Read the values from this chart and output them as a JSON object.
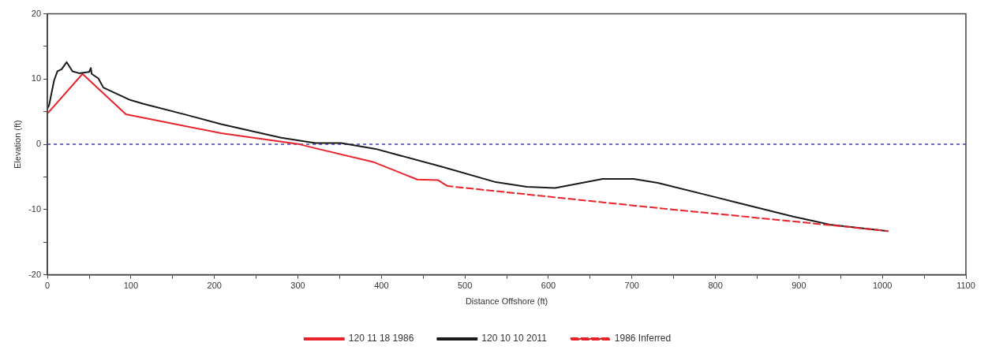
{
  "chart_data": {
    "type": "line",
    "xlabel": "Distance Offshore (ft)",
    "ylabel": "Elevation (ft)",
    "xlim": [
      0,
      1100
    ],
    "xticks": [
      0,
      {
        "value": 50,
        "label": null
      },
      100,
      {
        "value": 150,
        "label": null
      },
      200,
      {
        "value": 250,
        "label": null
      },
      300,
      {
        "value": 350,
        "label": null
      },
      400,
      {
        "value": 450,
        "label": null
      },
      500,
      {
        "value": 550,
        "label": null
      },
      600,
      {
        "value": 650,
        "label": null
      },
      700,
      {
        "value": 750,
        "label": null
      },
      800,
      {
        "value": 850,
        "label": null
      },
      900,
      {
        "value": 950,
        "label": null
      },
      1000,
      {
        "value": 1050,
        "label": null
      },
      1100
    ],
    "ylim": [
      -20,
      20
    ],
    "yticks": [
      -20,
      {
        "value": -15,
        "label": null
      },
      -10,
      {
        "value": -5,
        "label": null
      },
      0,
      {
        "value": 5,
        "label": null
      },
      10,
      {
        "value": 15,
        "label": null
      },
      20
    ],
    "grid": false,
    "legend": "bottom",
    "marker": "none",
    "ref_lines": [
      {
        "axis": "y",
        "value": 0,
        "color": "#3a3aaa",
        "line_style": "dotted"
      }
    ],
    "series": [
      {
        "name": "120 11 18 1986",
        "color": "#e8232a",
        "line_style": "solid",
        "x": [
          0,
          42,
          94,
          208,
          302,
          324,
          390,
          443,
          468,
          479
        ],
        "values": [
          4.7,
          10.8,
          4.6,
          1.7,
          0,
          -0.7,
          -2.7,
          -5.4,
          -5.5,
          -6.4
        ]
      },
      {
        "name": "120 10 10 2011",
        "color": "#1a1a1a",
        "line_style": "solid",
        "x": [
          0,
          2,
          8,
          12,
          17,
          23,
          30,
          38,
          50,
          52,
          53,
          61,
          67,
          99,
          115,
          167,
          208,
          280,
          321,
          352,
          393,
          474,
          537,
          574,
          608,
          665,
          702,
          731,
          800,
          822,
          894,
          937,
          1007
        ],
        "values": [
          5.5,
          6.0,
          9.8,
          11.2,
          11.5,
          12.6,
          11.2,
          10.9,
          11.1,
          11.7,
          10.8,
          10.1,
          8.7,
          6.8,
          6.2,
          4.5,
          3.1,
          1.0,
          0.2,
          0.2,
          -0.7,
          -3.5,
          -5.8,
          -6.5,
          -6.7,
          -5.3,
          -5.3,
          -5.9,
          -8.1,
          -8.8,
          -11.1,
          -12.3,
          -13.3
        ]
      },
      {
        "name": "1986 Inferred",
        "color": "#e8232a",
        "line_style": "dashed",
        "x": [
          479,
          606,
          718,
          900,
          1007
        ],
        "values": [
          -6.4,
          -8.1,
          -9.6,
          -11.9,
          -13.3
        ]
      }
    ]
  }
}
